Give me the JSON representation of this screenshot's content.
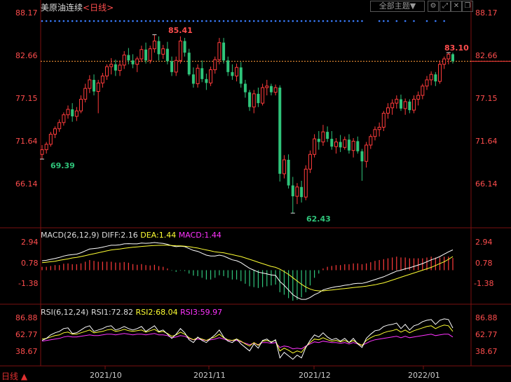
{
  "header": {
    "instrument": "美原油连续",
    "period_label": "<日线>",
    "theme_button": "全部主题▼",
    "window_icons": [
      "gear-icon",
      "expand-icon",
      "close-icon",
      "restore-icon"
    ]
  },
  "colors": {
    "up": "#ff3b3b",
    "down": "#2fc47a",
    "price_line": "#ff9c3a",
    "diff": "#ffffff",
    "dea": "#ffff33",
    "rsi3": "#ff33ff"
  },
  "main_axis": {
    "ticks": [
      "88.17",
      "82.66",
      "77.15",
      "71.64",
      "66.14"
    ]
  },
  "annotations": {
    "high": "85.41",
    "recent_high": "83.10",
    "low1": "69.39",
    "low2": "62.43"
  },
  "macd": {
    "title": "MACD(26,12,9)",
    "diff": "DIFF:2.16",
    "dea": "DEA:1.44",
    "macd": "MACD:1.44",
    "ticks": [
      "2.94",
      "0.78",
      "-1.38"
    ]
  },
  "rsi": {
    "title": "RSI(6,12,24)",
    "rsi1": "RSI1:72.82",
    "rsi2": "RSI2:68.04",
    "rsi3": "RSI3:59.97",
    "ticks": [
      "86.88",
      "62.77",
      "38.67"
    ]
  },
  "x_axis": {
    "labels": [
      "2021/10",
      "2021/11",
      "2021/12",
      "2022/01"
    ]
  },
  "footer": {
    "period": "日线 ▲"
  },
  "chart_data": {
    "type": "candlestick",
    "title": "美原油连续 日线",
    "ylim": [
      63.5,
      88.17
    ],
    "current_price": 82.0,
    "candles": [
      [
        70.0,
        71.2,
        69.39,
        70.6
      ],
      [
        70.6,
        71.6,
        70.1,
        71.3
      ],
      [
        71.3,
        72.9,
        71.0,
        72.6
      ],
      [
        72.6,
        73.6,
        72.1,
        73.3
      ],
      [
        73.3,
        74.5,
        72.9,
        74.1
      ],
      [
        74.1,
        75.4,
        73.7,
        75.1
      ],
      [
        75.1,
        76.3,
        74.6,
        75.8
      ],
      [
        75.8,
        76.6,
        74.2,
        74.9
      ],
      [
        74.9,
        76.1,
        74.3,
        75.6
      ],
      [
        75.6,
        77.6,
        75.3,
        77.1
      ],
      [
        77.1,
        79.1,
        76.7,
        78.5
      ],
      [
        78.5,
        80.2,
        77.9,
        79.6
      ],
      [
        79.6,
        80.3,
        77.6,
        78.1
      ],
      [
        78.1,
        79.6,
        75.3,
        79.2
      ],
      [
        79.2,
        80.5,
        78.6,
        80.1
      ],
      [
        80.1,
        81.6,
        79.6,
        81.3
      ],
      [
        81.3,
        82.4,
        80.3,
        81.6
      ],
      [
        81.6,
        82.2,
        80.1,
        80.8
      ],
      [
        80.8,
        82.1,
        80.1,
        81.5
      ],
      [
        81.5,
        83.3,
        81.0,
        82.8
      ],
      [
        82.8,
        83.7,
        81.6,
        82.1
      ],
      [
        82.1,
        82.9,
        81.1,
        81.6
      ],
      [
        81.6,
        82.6,
        80.6,
        82.3
      ],
      [
        82.3,
        84.0,
        81.9,
        83.5
      ],
      [
        83.5,
        84.4,
        81.7,
        82.1
      ],
      [
        82.1,
        84.0,
        81.7,
        83.6
      ],
      [
        83.6,
        85.41,
        83.1,
        84.6
      ],
      [
        84.6,
        85.2,
        82.1,
        82.9
      ],
      [
        82.9,
        84.1,
        82.3,
        83.6
      ],
      [
        83.6,
        84.5,
        81.6,
        82.0
      ],
      [
        82.0,
        82.6,
        80.1,
        80.6
      ],
      [
        80.6,
        82.6,
        80.1,
        82.1
      ],
      [
        82.1,
        85.2,
        81.7,
        84.6
      ],
      [
        84.6,
        85.0,
        82.6,
        83.1
      ],
      [
        83.1,
        83.6,
        80.1,
        80.3
      ],
      [
        80.3,
        81.2,
        78.6,
        79.1
      ],
      [
        79.1,
        81.6,
        78.6,
        81.1
      ],
      [
        81.1,
        82.1,
        79.3,
        79.7
      ],
      [
        79.7,
        80.4,
        78.3,
        79.2
      ],
      [
        79.2,
        81.3,
        78.8,
        80.9
      ],
      [
        80.9,
        82.6,
        80.4,
        82.2
      ],
      [
        82.2,
        85.0,
        81.6,
        84.4
      ],
      [
        84.4,
        85.0,
        81.7,
        82.1
      ],
      [
        82.1,
        82.6,
        80.1,
        80.6
      ],
      [
        80.6,
        81.6,
        79.6,
        80.1
      ],
      [
        80.1,
        81.7,
        79.4,
        81.2
      ],
      [
        81.2,
        81.9,
        78.6,
        79.1
      ],
      [
        79.1,
        79.6,
        77.3,
        78.0
      ],
      [
        78.0,
        78.3,
        75.6,
        76.1
      ],
      [
        76.1,
        78.3,
        75.3,
        77.8
      ],
      [
        77.8,
        78.6,
        76.1,
        76.6
      ],
      [
        76.6,
        79.1,
        76.3,
        78.6
      ],
      [
        78.6,
        79.6,
        77.6,
        78.8
      ],
      [
        78.8,
        79.1,
        77.6,
        78.0
      ],
      [
        78.0,
        79.0,
        77.6,
        78.6
      ],
      [
        78.6,
        78.9,
        66.5,
        67.5
      ],
      [
        67.5,
        69.9,
        66.9,
        69.3
      ],
      [
        69.3,
        70.0,
        65.6,
        66.0
      ],
      [
        66.0,
        67.1,
        62.43,
        64.6
      ],
      [
        64.6,
        66.3,
        63.6,
        65.8
      ],
      [
        65.8,
        66.6,
        63.8,
        64.5
      ],
      [
        64.5,
        68.6,
        64.1,
        68.1
      ],
      [
        68.1,
        70.5,
        67.6,
        70.0
      ],
      [
        70.0,
        72.6,
        69.6,
        72.0
      ],
      [
        72.0,
        73.0,
        70.6,
        71.6
      ],
      [
        71.6,
        73.8,
        71.1,
        72.9
      ],
      [
        72.9,
        73.6,
        71.6,
        72.0
      ],
      [
        72.0,
        73.0,
        70.6,
        71.0
      ],
      [
        71.0,
        72.1,
        70.1,
        71.6
      ],
      [
        71.6,
        72.5,
        70.3,
        70.9
      ],
      [
        70.9,
        72.3,
        70.6,
        71.9
      ],
      [
        71.9,
        72.6,
        70.1,
        70.5
      ],
      [
        70.5,
        72.1,
        69.6,
        71.7
      ],
      [
        71.7,
        72.3,
        70.1,
        70.4
      ],
      [
        70.4,
        70.7,
        66.6,
        69.1
      ],
      [
        69.1,
        71.6,
        68.3,
        71.2
      ],
      [
        71.2,
        72.6,
        70.7,
        72.3
      ],
      [
        72.3,
        73.6,
        71.8,
        73.2
      ],
      [
        73.2,
        74.1,
        72.3,
        73.5
      ],
      [
        73.5,
        75.6,
        73.0,
        75.3
      ],
      [
        75.3,
        76.6,
        74.6,
        76.0
      ],
      [
        76.0,
        77.1,
        75.1,
        76.6
      ],
      [
        76.6,
        77.6,
        75.9,
        77.1
      ],
      [
        77.1,
        77.7,
        75.6,
        75.9
      ],
      [
        75.9,
        77.2,
        75.1,
        76.8
      ],
      [
        76.8,
        77.1,
        75.3,
        75.7
      ],
      [
        75.7,
        77.6,
        75.3,
        77.1
      ],
      [
        77.1,
        78.1,
        76.3,
        77.6
      ],
      [
        77.6,
        79.1,
        77.1,
        78.8
      ],
      [
        78.8,
        80.1,
        78.3,
        79.6
      ],
      [
        79.6,
        80.7,
        78.9,
        80.3
      ],
      [
        80.3,
        80.6,
        78.8,
        79.4
      ],
      [
        79.4,
        82.1,
        79.1,
        81.6
      ],
      [
        81.6,
        82.6,
        81.0,
        82.3
      ],
      [
        82.3,
        83.1,
        81.6,
        82.9
      ],
      [
        82.9,
        83.1,
        81.7,
        82.0
      ]
    ],
    "macd": {
      "ylim": [
        -3.3,
        3.3
      ],
      "diff": [
        1.0,
        1.05,
        1.15,
        1.25,
        1.35,
        1.5,
        1.6,
        1.65,
        1.7,
        1.85,
        2.05,
        2.25,
        2.3,
        2.35,
        2.45,
        2.55,
        2.65,
        2.65,
        2.7,
        2.8,
        2.82,
        2.8,
        2.8,
        2.88,
        2.86,
        2.88,
        2.94,
        2.88,
        2.85,
        2.75,
        2.6,
        2.5,
        2.55,
        2.5,
        2.3,
        2.1,
        2.0,
        1.8,
        1.6,
        1.5,
        1.5,
        1.6,
        1.5,
        1.3,
        1.1,
        1.0,
        0.8,
        0.5,
        0.2,
        0.0,
        -0.2,
        -0.3,
        -0.4,
        -0.5,
        -0.55,
        -1.2,
        -1.6,
        -2.1,
        -2.6,
        -2.9,
        -3.1,
        -3.1,
        -2.9,
        -2.6,
        -2.4,
        -2.1,
        -1.95,
        -1.85,
        -1.75,
        -1.7,
        -1.6,
        -1.55,
        -1.45,
        -1.4,
        -1.4,
        -1.3,
        -1.15,
        -1.0,
        -0.85,
        -0.7,
        -0.5,
        -0.3,
        -0.1,
        0.0,
        0.15,
        0.25,
        0.4,
        0.55,
        0.7,
        0.9,
        1.1,
        1.25,
        1.45,
        1.7,
        1.95,
        2.16
      ],
      "dea": [
        0.8,
        0.85,
        0.9,
        0.95,
        1.05,
        1.12,
        1.2,
        1.3,
        1.35,
        1.45,
        1.55,
        1.65,
        1.75,
        1.85,
        1.95,
        2.05,
        2.15,
        2.2,
        2.25,
        2.32,
        2.38,
        2.44,
        2.48,
        2.52,
        2.56,
        2.6,
        2.62,
        2.64,
        2.65,
        2.65,
        2.63,
        2.6,
        2.58,
        2.55,
        2.5,
        2.42,
        2.35,
        2.25,
        2.15,
        2.05,
        1.95,
        1.9,
        1.85,
        1.75,
        1.65,
        1.55,
        1.45,
        1.3,
        1.15,
        1.0,
        0.85,
        0.7,
        0.55,
        0.4,
        0.3,
        0.1,
        -0.15,
        -0.45,
        -0.8,
        -1.15,
        -1.5,
        -1.8,
        -2.0,
        -2.15,
        -2.2,
        -2.2,
        -2.15,
        -2.1,
        -2.05,
        -2.0,
        -1.95,
        -1.9,
        -1.85,
        -1.8,
        -1.75,
        -1.7,
        -1.62,
        -1.55,
        -1.45,
        -1.35,
        -1.2,
        -1.05,
        -0.9,
        -0.75,
        -0.6,
        -0.45,
        -0.3,
        -0.15,
        0.0,
        0.15,
        0.3,
        0.5,
        0.7,
        0.9,
        1.15,
        1.44
      ]
    },
    "rsi": {
      "ylim": [
        30,
        95
      ],
      "rsi1": [
        55,
        58,
        63,
        66,
        68,
        72,
        73,
        65,
        66,
        70,
        74,
        76,
        68,
        70,
        72,
        75,
        76,
        70,
        72,
        75,
        72,
        70,
        72,
        75,
        68,
        72,
        76,
        68,
        70,
        64,
        58,
        64,
        72,
        66,
        56,
        52,
        60,
        55,
        52,
        58,
        63,
        70,
        60,
        54,
        52,
        57,
        50,
        45,
        40,
        50,
        44,
        55,
        57,
        52,
        56,
        30,
        38,
        33,
        28,
        34,
        30,
        45,
        55,
        63,
        60,
        66,
        60,
        56,
        58,
        54,
        58,
        52,
        58,
        50,
        45,
        58,
        64,
        69,
        70,
        75,
        77,
        78,
        80,
        72,
        78,
        70,
        76,
        78,
        82,
        84,
        85,
        78,
        84,
        86,
        85,
        72.82
      ],
      "rsi2": [
        57,
        58,
        60,
        62,
        63,
        66,
        67,
        64,
        64,
        66,
        68,
        70,
        66,
        67,
        68,
        70,
        71,
        68,
        69,
        71,
        69,
        68,
        69,
        70,
        67,
        69,
        71,
        67,
        68,
        65,
        61,
        63,
        67,
        64,
        59,
        56,
        59,
        57,
        55,
        58,
        60,
        64,
        59,
        56,
        55,
        57,
        54,
        50,
        47,
        52,
        48,
        54,
        55,
        53,
        55,
        40,
        44,
        41,
        37,
        40,
        38,
        46,
        52,
        57,
        56,
        59,
        56,
        54,
        55,
        53,
        55,
        52,
        55,
        51,
        48,
        55,
        59,
        62,
        63,
        66,
        68,
        69,
        71,
        67,
        70,
        66,
        69,
        71,
        73,
        75,
        76,
        72,
        75,
        77,
        76,
        68.04
      ],
      "rsi3": [
        54,
        55,
        56,
        57,
        58,
        60,
        61,
        60,
        60,
        61,
        62,
        63,
        62,
        62,
        63,
        64,
        64,
        63,
        64,
        65,
        64,
        63,
        64,
        64,
        63,
        64,
        65,
        63,
        63,
        62,
        59,
        60,
        62,
        61,
        58,
        56,
        57,
        56,
        55,
        56,
        57,
        59,
        57,
        55,
        55,
        55,
        53,
        51,
        49,
        51,
        49,
        52,
        52,
        51,
        52,
        45,
        47,
        46,
        43,
        44,
        43,
        47,
        50,
        53,
        52,
        54,
        53,
        52,
        52,
        51,
        52,
        50,
        52,
        50,
        48,
        51,
        54,
        56,
        57,
        58,
        59,
        60,
        61,
        59,
        61,
        59,
        60,
        61,
        62,
        63,
        64,
        62,
        63,
        64,
        64,
        59.97
      ]
    }
  }
}
